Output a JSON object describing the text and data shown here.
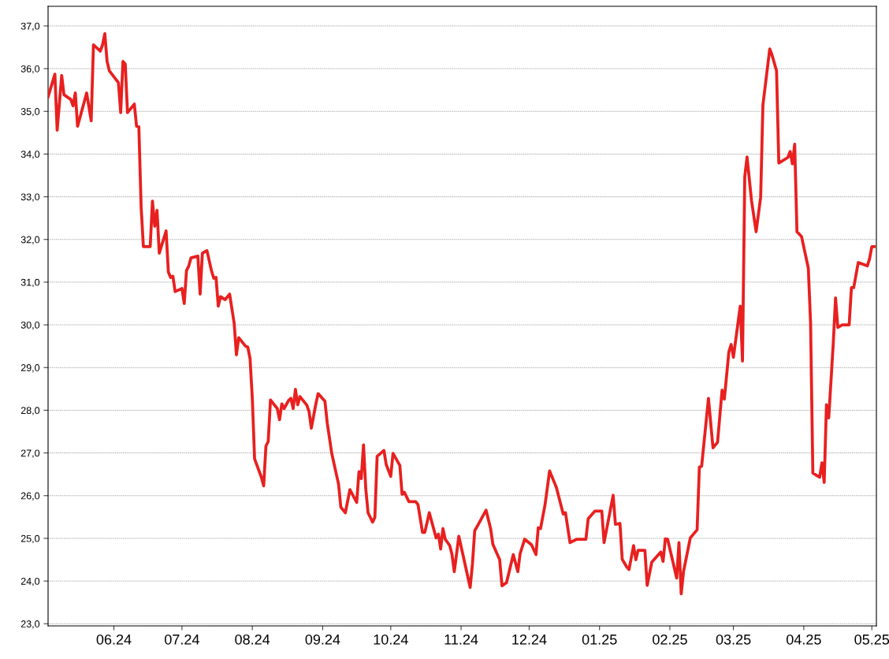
{
  "chart_data": {
    "type": "line",
    "grid": "y",
    "legend": false,
    "marker": "none",
    "line_style": "solid",
    "xlim": [
      "2024-05-03",
      "2025-05-03"
    ],
    "xticks": [
      {
        "value": "2024-06-01",
        "label": "06.24"
      },
      {
        "value": "2024-07-01",
        "label": "07.24"
      },
      {
        "value": "2024-08-01",
        "label": "08.24"
      },
      {
        "value": "2024-09-01",
        "label": "09.24"
      },
      {
        "value": "2024-10-01",
        "label": "10.24"
      },
      {
        "value": "2024-11-01",
        "label": "11.24"
      },
      {
        "value": "2024-12-01",
        "label": "12.24"
      },
      {
        "value": "2025-01-01",
        "label": "01.25"
      },
      {
        "value": "2025-02-01",
        "label": "02.25"
      },
      {
        "value": "2025-03-01",
        "label": "03.25"
      },
      {
        "value": "2025-04-01",
        "label": "04.25"
      },
      {
        "value": "2025-05-01",
        "label": "05.25"
      }
    ],
    "ylim": [
      22.95,
      37.46
    ],
    "yticks": [
      {
        "value": 23,
        "label": "23,0"
      },
      {
        "value": 24,
        "label": "24,0"
      },
      {
        "value": 25,
        "label": "25,0"
      },
      {
        "value": 26,
        "label": "26,0"
      },
      {
        "value": 27,
        "label": "27,0"
      },
      {
        "value": 28,
        "label": "28,0"
      },
      {
        "value": 29,
        "label": "29,0"
      },
      {
        "value": 30,
        "label": "30,0"
      },
      {
        "value": 31,
        "label": "31,0"
      },
      {
        "value": 32,
        "label": "32,0"
      },
      {
        "value": 33,
        "label": "33,0"
      },
      {
        "value": 34,
        "label": "34,0"
      },
      {
        "value": 35,
        "label": "35,0"
      },
      {
        "value": 36,
        "label": "36,0"
      },
      {
        "value": 37,
        "label": "37,0"
      }
    ],
    "series": [
      {
        "color": "#e8201f",
        "x": [
          "2024-05-03",
          "2024-05-06",
          "2024-05-07",
          "2024-05-09",
          "2024-05-10",
          "2024-05-13",
          "2024-05-14",
          "2024-05-15",
          "2024-05-16",
          "2024-05-20",
          "2024-05-22",
          "2024-05-23",
          "2024-05-26",
          "2024-05-27",
          "2024-05-28",
          "2024-05-29",
          "2024-05-30",
          "2024-06-03",
          "2024-06-04",
          "2024-06-05",
          "2024-06-06",
          "2024-06-07",
          "2024-06-10",
          "2024-06-11",
          "2024-06-12",
          "2024-06-13",
          "2024-06-14",
          "2024-06-17",
          "2024-06-18",
          "2024-06-19",
          "2024-06-20",
          "2024-06-21",
          "2024-06-24",
          "2024-06-25",
          "2024-06-26",
          "2024-06-27",
          "2024-06-28",
          "2024-07-01",
          "2024-07-02",
          "2024-07-03",
          "2024-07-04",
          "2024-07-05",
          "2024-07-08",
          "2024-07-09",
          "2024-07-10",
          "2024-07-12",
          "2024-07-14",
          "2024-07-15",
          "2024-07-16",
          "2024-07-17",
          "2024-07-18",
          "2024-07-20",
          "2024-07-22",
          "2024-07-24",
          "2024-07-25",
          "2024-07-26",
          "2024-07-29",
          "2024-07-30",
          "2024-07-31",
          "2024-08-01",
          "2024-08-02",
          "2024-08-05",
          "2024-08-06",
          "2024-08-07",
          "2024-08-08",
          "2024-08-09",
          "2024-08-12",
          "2024-08-13",
          "2024-08-14",
          "2024-08-15",
          "2024-08-17",
          "2024-08-18",
          "2024-08-19",
          "2024-08-20",
          "2024-08-21",
          "2024-08-22",
          "2024-08-25",
          "2024-08-26",
          "2024-08-27",
          "2024-08-29",
          "2024-08-30",
          "2024-09-02",
          "2024-09-03",
          "2024-09-05",
          "2024-09-08",
          "2024-09-09",
          "2024-09-11",
          "2024-09-13",
          "2024-09-16",
          "2024-09-17",
          "2024-09-18",
          "2024-09-19",
          "2024-09-20",
          "2024-09-21",
          "2024-09-23",
          "2024-09-24",
          "2024-09-25",
          "2024-09-28",
          "2024-09-29",
          "2024-10-01",
          "2024-10-02",
          "2024-10-05",
          "2024-10-06",
          "2024-10-07",
          "2024-10-09",
          "2024-10-12",
          "2024-10-13",
          "2024-10-15",
          "2024-10-16",
          "2024-10-18",
          "2024-10-21",
          "2024-10-22",
          "2024-10-23",
          "2024-10-24",
          "2024-10-25",
          "2024-10-27",
          "2024-10-28",
          "2024-10-29",
          "2024-10-31",
          "2024-11-05",
          "2024-11-06",
          "2024-11-07",
          "2024-11-08",
          "2024-11-12",
          "2024-11-14",
          "2024-11-15",
          "2024-11-18",
          "2024-11-19",
          "2024-11-21",
          "2024-11-24",
          "2024-11-26",
          "2024-11-27",
          "2024-11-29",
          "2024-12-02",
          "2024-12-04",
          "2024-12-05",
          "2024-12-06",
          "2024-12-08",
          "2024-12-10",
          "2024-12-13",
          "2024-12-16",
          "2024-12-17",
          "2024-12-19",
          "2024-12-22",
          "2024-12-26",
          "2024-12-27",
          "2024-12-30",
          "2025-01-02",
          "2025-01-03",
          "2025-01-07",
          "2025-01-08",
          "2025-01-10",
          "2025-01-11",
          "2025-01-13",
          "2025-01-14",
          "2025-01-16",
          "2025-01-17",
          "2025-01-18",
          "2025-01-21",
          "2025-01-22",
          "2025-01-24",
          "2025-01-28",
          "2025-01-29",
          "2025-01-30",
          "2025-01-31",
          "2025-02-04",
          "2025-02-05",
          "2025-02-06",
          "2025-02-07",
          "2025-02-10",
          "2025-02-13",
          "2025-02-14",
          "2025-02-15",
          "2025-02-18",
          "2025-02-20",
          "2025-02-22",
          "2025-02-24",
          "2025-02-25",
          "2025-02-27",
          "2025-02-28",
          "2025-03-01",
          "2025-03-04",
          "2025-03-05",
          "2025-03-06",
          "2025-03-07",
          "2025-03-09",
          "2025-03-11",
          "2025-03-13",
          "2025-03-14",
          "2025-03-17",
          "2025-03-18",
          "2025-03-20",
          "2025-03-21",
          "2025-03-25",
          "2025-03-26",
          "2025-03-27",
          "2025-03-28",
          "2025-03-29",
          "2025-03-31",
          "2025-04-03",
          "2025-04-04",
          "2025-04-05",
          "2025-04-08",
          "2025-04-09",
          "2025-04-10",
          "2025-04-11",
          "2025-04-12",
          "2025-04-14",
          "2025-04-15",
          "2025-04-16",
          "2025-04-18",
          "2025-04-21",
          "2025-04-22",
          "2025-04-23",
          "2025-04-25",
          "2025-04-29",
          "2025-04-30",
          "2025-05-01",
          "2025-05-02"
        ],
        "values": [
          35.34,
          35.87,
          34.56,
          35.84,
          35.39,
          35.28,
          35.13,
          35.43,
          34.65,
          35.43,
          34.78,
          36.56,
          36.41,
          36.56,
          36.82,
          36.17,
          35.95,
          35.67,
          34.97,
          36.17,
          36.11,
          34.97,
          35.17,
          34.65,
          34.64,
          32.77,
          31.83,
          31.83,
          32.9,
          32.31,
          32.68,
          31.68,
          32.2,
          31.24,
          31.11,
          31.14,
          30.78,
          30.85,
          30.5,
          31.27,
          31.38,
          31.57,
          31.61,
          30.72,
          31.68,
          31.74,
          31.27,
          31.09,
          31.11,
          30.44,
          30.66,
          30.59,
          30.72,
          30.04,
          29.3,
          29.7,
          29.5,
          29.48,
          29.21,
          28.28,
          26.86,
          26.43,
          26.23,
          27.16,
          27.27,
          28.24,
          28.04,
          27.78,
          28.15,
          28.04,
          28.23,
          28.28,
          28.04,
          28.49,
          28.13,
          28.32,
          28.12,
          27.97,
          27.58,
          28.15,
          28.39,
          28.21,
          27.71,
          26.99,
          26.27,
          25.73,
          25.6,
          26.14,
          25.84,
          26.56,
          26.4,
          27.19,
          26.16,
          25.6,
          25.38,
          25.49,
          26.92,
          27.06,
          26.73,
          26.45,
          26.99,
          26.71,
          26.03,
          26.08,
          25.86,
          25.86,
          25.79,
          25.14,
          25.14,
          25.6,
          25.01,
          25.1,
          24.75,
          25.23,
          24.98,
          24.83,
          24.62,
          24.22,
          25.05,
          23.85,
          24.4,
          25.18,
          25.27,
          25.66,
          25.23,
          24.86,
          24.5,
          23.89,
          23.96,
          24.62,
          24.22,
          24.64,
          24.98,
          24.85,
          24.62,
          25.25,
          25.23,
          25.79,
          26.58,
          26.19,
          25.57,
          25.6,
          24.9,
          24.98,
          24.98,
          25.46,
          25.64,
          25.64,
          24.9,
          26.01,
          25.33,
          25.35,
          24.51,
          24.33,
          24.27,
          24.83,
          24.5,
          24.72,
          24.72,
          23.9,
          24.44,
          24.68,
          24.46,
          24.99,
          24.98,
          24.07,
          24.9,
          23.7,
          24.22,
          25.01,
          25.2,
          26.67,
          26.69,
          28.28,
          27.12,
          27.25,
          28.47,
          28.26,
          29.37,
          29.54,
          29.24,
          30.44,
          29.15,
          33.47,
          33.93,
          32.9,
          32.18,
          32.99,
          35.15,
          36.46,
          36.32,
          35.95,
          33.79,
          33.92,
          34.06,
          33.77,
          34.23,
          32.18,
          32.07,
          31.33,
          30.04,
          26.53,
          26.43,
          26.77,
          26.31,
          28.13,
          27.82,
          29.57,
          30.63,
          29.94,
          30.0,
          30.0,
          30.87,
          30.87,
          31.46,
          31.38,
          31.55,
          31.83,
          31.83
        ]
      }
    ]
  }
}
